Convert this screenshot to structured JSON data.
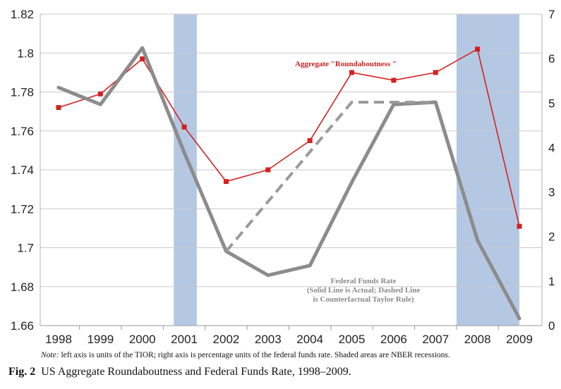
{
  "chart_data": {
    "type": "line",
    "x": [
      "1998",
      "1999",
      "2000",
      "2001",
      "2002",
      "2003",
      "2004",
      "2005",
      "2006",
      "2007",
      "2008",
      "2009"
    ],
    "left_axis": {
      "ylim": [
        1.66,
        1.82
      ],
      "ticks": [
        "1.66",
        "1.68",
        "1.7",
        "1.72",
        "1.74",
        "1.76",
        "1.78",
        "1.8",
        "1.82"
      ]
    },
    "right_axis": {
      "ylim": [
        0,
        7
      ],
      "ticks": [
        "0",
        "1",
        "2",
        "3",
        "4",
        "5",
        "6",
        "7"
      ]
    },
    "grid": true,
    "recessions": [
      [
        2000.75,
        2001.3
      ],
      [
        2007.5,
        2009.0
      ]
    ],
    "series": [
      {
        "name": "Aggregate \"Roundaboutness \"",
        "axis": "left",
        "color": "#d42020",
        "style": "solid-markers",
        "values": [
          1.772,
          1.779,
          1.797,
          1.762,
          1.734,
          1.74,
          1.755,
          1.79,
          1.786,
          1.79,
          1.802,
          1.711
        ]
      },
      {
        "name": "Federal Funds Rate (Solid Line is Actual)",
        "axis": "right",
        "color": "#8c8c8c",
        "style": "solid",
        "values": [
          5.35,
          4.97,
          6.24,
          3.89,
          1.67,
          1.13,
          1.35,
          3.22,
          4.97,
          5.02,
          1.92,
          0.16
        ]
      },
      {
        "name": "Counterfactual Taylor Rule (Dashed Line)",
        "axis": "right",
        "color": "#9a9a9a",
        "style": "dashed",
        "x": [
          "2002",
          "2005",
          "2006",
          "2007"
        ],
        "values": [
          1.67,
          5.02,
          5.02,
          5.02
        ]
      }
    ],
    "annotations": {
      "red_label": "Aggregate \"Roundaboutness \"",
      "gray_label_lines": [
        "Federal Funds Rate",
        "(Solid Line is Actual; Dashed Line",
        "is Counterfactual Taylor Rule)"
      ]
    }
  },
  "note": {
    "lead": "Note:",
    "text": " left axis is units of the TIOR; right axis is percentage units of the federal funds rate. Shaded areas are NBER recessions."
  },
  "caption": {
    "label": "Fig. 2",
    "text": "US Aggregate Roundaboutness and Federal Funds Rate, 1998–2009."
  },
  "colors": {
    "recession_fill": "#b4c8e4",
    "grid": "#c8c8c8",
    "red": "#d42020",
    "gray": "#8c8c8c"
  }
}
